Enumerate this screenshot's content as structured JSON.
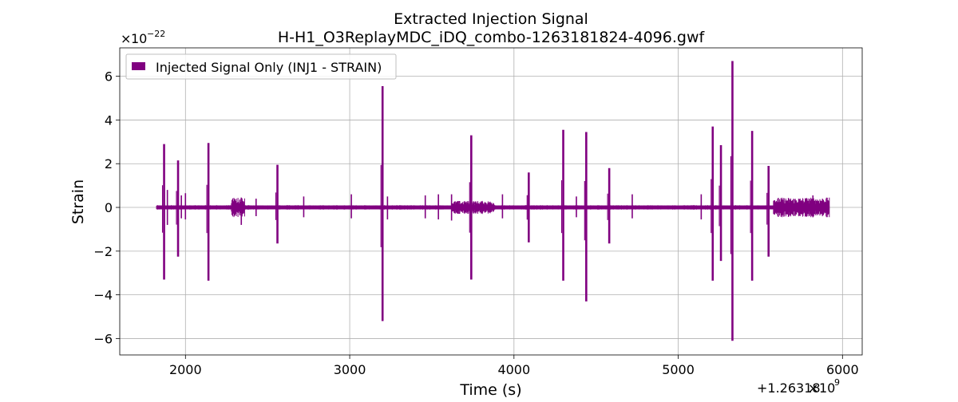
{
  "chart_data": {
    "type": "line",
    "title": "Extracted Injection Signal",
    "subtitle": "H-H1_O3ReplayMDC_iDQ_combo-1263181824-4096.gwf",
    "xlabel": "Time (s)",
    "ylabel": "Strain",
    "x_offset_label": "+1.26318",
    "x_offset_times": "×",
    "x_offset_base": "10",
    "x_offset_exp": "9",
    "y_scale_times": "×",
    "y_scale_base": "10",
    "y_scale_exp": "−22",
    "xlim": [
      1600,
      6120
    ],
    "ylim": [
      -6.75,
      7.3
    ],
    "x_ticks": [
      2000,
      3000,
      4000,
      5000,
      6000
    ],
    "x_tick_labels": [
      "2000",
      "3000",
      "4000",
      "5000",
      "6000"
    ],
    "y_ticks": [
      -6,
      -4,
      -2,
      0,
      2,
      4,
      6
    ],
    "y_tick_labels": [
      "−6",
      "−4",
      "−2",
      "0",
      "2",
      "4",
      "6"
    ],
    "grid": true,
    "legend_position": "top-left",
    "series": [
      {
        "name": "Injected Signal Only (INJ1 - STRAIN)",
        "color": "#800080",
        "x_range": [
          1824,
          5920
        ],
        "baseline": 0,
        "spikes": [
          {
            "x": 1870,
            "ymax": 2.9,
            "ymin": -3.3
          },
          {
            "x": 1955,
            "ymax": 2.15,
            "ymin": -2.25
          },
          {
            "x": 2140,
            "ymax": 2.95,
            "ymin": -3.35
          },
          {
            "x": 2560,
            "ymax": 1.95,
            "ymin": -1.65
          },
          {
            "x": 3200,
            "ymax": 5.55,
            "ymin": -5.2
          },
          {
            "x": 3740,
            "ymax": 3.3,
            "ymin": -3.3
          },
          {
            "x": 4090,
            "ymax": 1.6,
            "ymin": -1.6
          },
          {
            "x": 4300,
            "ymax": 3.55,
            "ymin": -3.35
          },
          {
            "x": 4440,
            "ymax": 3.45,
            "ymin": -4.3
          },
          {
            "x": 4580,
            "ymax": 1.8,
            "ymin": -1.65
          },
          {
            "x": 5210,
            "ymax": 3.7,
            "ymin": -3.35
          },
          {
            "x": 5260,
            "ymax": 2.85,
            "ymin": -2.45
          },
          {
            "x": 5330,
            "ymax": 6.7,
            "ymin": -6.1
          },
          {
            "x": 5450,
            "ymax": 3.5,
            "ymin": -3.35
          },
          {
            "x": 5550,
            "ymax": 1.9,
            "ymin": -2.25
          }
        ],
        "minor_spikes": [
          {
            "x": 1890,
            "ymax": 0.8,
            "ymin": -0.8
          },
          {
            "x": 1975,
            "ymax": 0.55,
            "ymin": -0.5
          },
          {
            "x": 2000,
            "ymax": 0.65,
            "ymin": -0.55
          },
          {
            "x": 2340,
            "ymax": 0.45,
            "ymin": -0.8
          },
          {
            "x": 2430,
            "ymax": 0.4,
            "ymin": -0.4
          },
          {
            "x": 2720,
            "ymax": 0.5,
            "ymin": -0.45
          },
          {
            "x": 3010,
            "ymax": 0.6,
            "ymin": -0.5
          },
          {
            "x": 3230,
            "ymax": 0.5,
            "ymin": -0.55
          },
          {
            "x": 3460,
            "ymax": 0.55,
            "ymin": -0.5
          },
          {
            "x": 3540,
            "ymax": 0.6,
            "ymin": -0.55
          },
          {
            "x": 3620,
            "ymax": 0.6,
            "ymin": -0.6
          },
          {
            "x": 3930,
            "ymax": 0.6,
            "ymin": -0.5
          },
          {
            "x": 4380,
            "ymax": 0.5,
            "ymin": -0.45
          },
          {
            "x": 4720,
            "ymax": 0.6,
            "ymin": -0.5
          },
          {
            "x": 5140,
            "ymax": 0.6,
            "ymin": -0.55
          },
          {
            "x": 5820,
            "ymax": 0.55,
            "ymin": -0.45
          }
        ],
        "noise_regions": [
          {
            "x0": 1824,
            "x1": 5920,
            "amp": 0.1
          },
          {
            "x0": 2280,
            "x1": 2360,
            "amp": 0.45
          },
          {
            "x0": 3620,
            "x1": 3880,
            "amp": 0.3
          },
          {
            "x0": 5580,
            "x1": 5920,
            "amp": 0.45
          }
        ]
      }
    ]
  }
}
